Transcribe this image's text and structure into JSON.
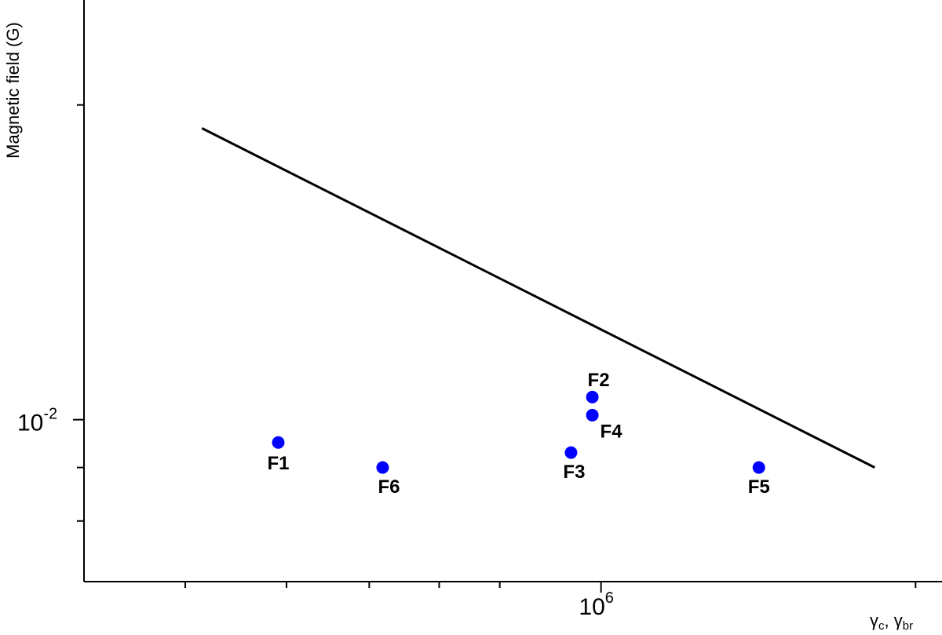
{
  "chart_data": {
    "type": "scatter",
    "y_label": "Magnetic field (G)",
    "x_label": [
      "γ",
      "c",
      ", γ",
      "br"
    ],
    "xlog": true,
    "ylog": true,
    "xlim": [
      320000,
      2120000
    ],
    "ylim": [
      0.007,
      0.0252
    ],
    "xticks": [
      {
        "value": 1000000,
        "label": "10",
        "exponent": "6"
      }
    ],
    "yticks": [
      {
        "value": 0.01,
        "label": "10",
        "exponent": "-2"
      }
    ],
    "xminor_ticks": [
      400000,
      500000,
      600000,
      700000,
      800000,
      2000000
    ],
    "yminor_ticks": [
      0.008,
      0.009,
      0.02
    ],
    "points": {
      "color": "#0000ff",
      "labels": [
        "F1",
        "F6",
        "F3",
        "F2",
        "F4",
        "F5"
      ],
      "x": [
        491000,
        618000,
        936000,
        981000,
        981000,
        1416000
      ],
      "y": [
        0.00951,
        0.009,
        0.0093,
        0.01051,
        0.0101,
        0.009
      ]
    },
    "line": {
      "color": "#000000",
      "x": [
        415000,
        1828000
      ],
      "y": [
        0.019,
        0.009
      ]
    }
  }
}
